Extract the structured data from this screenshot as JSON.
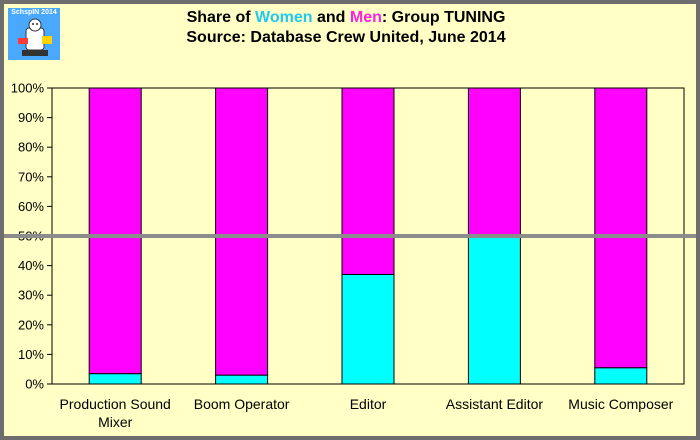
{
  "logo": {
    "text": "SchspIN 2014",
    "kind": "cartoon-badge"
  },
  "title": {
    "line1_prefix": "Share of ",
    "line1_women": "Women",
    "line1_and": " and ",
    "line1_men": "Men",
    "line1_suffix": ": Group TUNING",
    "line2": "Source: Database Crew United, June 2014"
  },
  "colors": {
    "women": "#00ffff",
    "men": "#ff00ff",
    "women_title": "#22c8f0",
    "men_title": "#ff22dd",
    "background": "#ffffc6",
    "reference_line": "#8c8c8c"
  },
  "chart_data": {
    "type": "bar",
    "stacked": true,
    "percent": true,
    "categories": [
      [
        "Production Sound",
        "Mixer"
      ],
      [
        "Boom Operator"
      ],
      [
        "Editor"
      ],
      [
        "Assistant Editor"
      ],
      [
        "Music Composer"
      ]
    ],
    "series": [
      {
        "name": "Women",
        "values": [
          3.5,
          3,
          37,
          50,
          5.5
        ]
      },
      {
        "name": "Men",
        "values": [
          96.5,
          97,
          63,
          50,
          94.5
        ]
      }
    ],
    "ylim": [
      0,
      100
    ],
    "y_ticks": [
      "0%",
      "10%",
      "20%",
      "30%",
      "40%",
      "50%",
      "60%",
      "70%",
      "80%",
      "90%",
      "100%"
    ],
    "reference_line": 50,
    "grid": false,
    "legend": "none"
  }
}
